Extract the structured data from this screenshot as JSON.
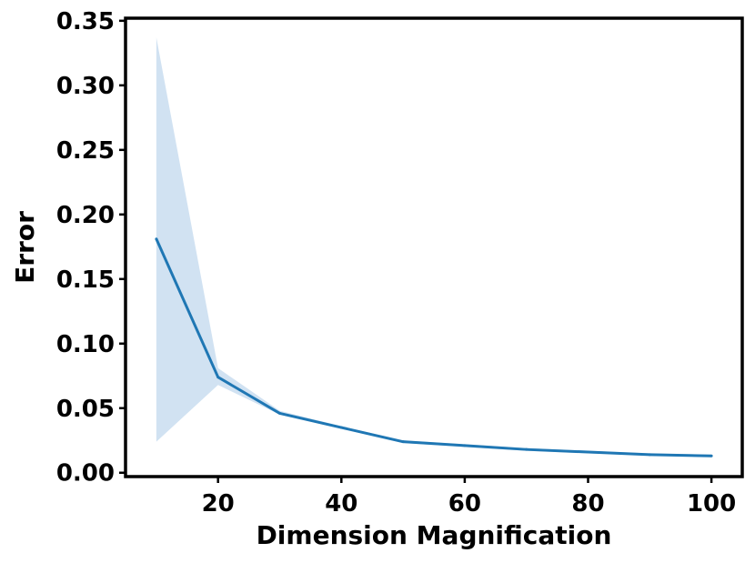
{
  "chart_data": {
    "type": "line",
    "title": "",
    "xlabel": "Dimension Magnification",
    "ylabel": "Error",
    "xlim": [
      5,
      105
    ],
    "ylim": [
      -0.003,
      0.352
    ],
    "xticks": [
      20,
      40,
      60,
      80,
      100
    ],
    "yticks": [
      0.0,
      0.05,
      0.1,
      0.15,
      0.2,
      0.25,
      0.3,
      0.35
    ],
    "xtick_labels": [
      "20",
      "40",
      "60",
      "80",
      "100"
    ],
    "ytick_labels": [
      "0.00",
      "0.05",
      "0.10",
      "0.15",
      "0.20",
      "0.25",
      "0.30",
      "0.35"
    ],
    "grid": false,
    "series": [
      {
        "x": [
          10,
          20,
          30,
          40,
          50,
          60,
          70,
          80,
          90,
          100
        ],
        "values": [
          0.181,
          0.074,
          0.046,
          0.035,
          0.024,
          0.021,
          0.018,
          0.016,
          0.014,
          0.013
        ],
        "lower": [
          0.024,
          0.068,
          0.045,
          0.034,
          0.023,
          0.02,
          0.017,
          0.015,
          0.014,
          0.013
        ],
        "upper": [
          0.337,
          0.081,
          0.048,
          0.036,
          0.025,
          0.022,
          0.019,
          0.017,
          0.015,
          0.014
        ],
        "color": "#1f77b4",
        "band_color": "#c6dbef"
      }
    ]
  }
}
